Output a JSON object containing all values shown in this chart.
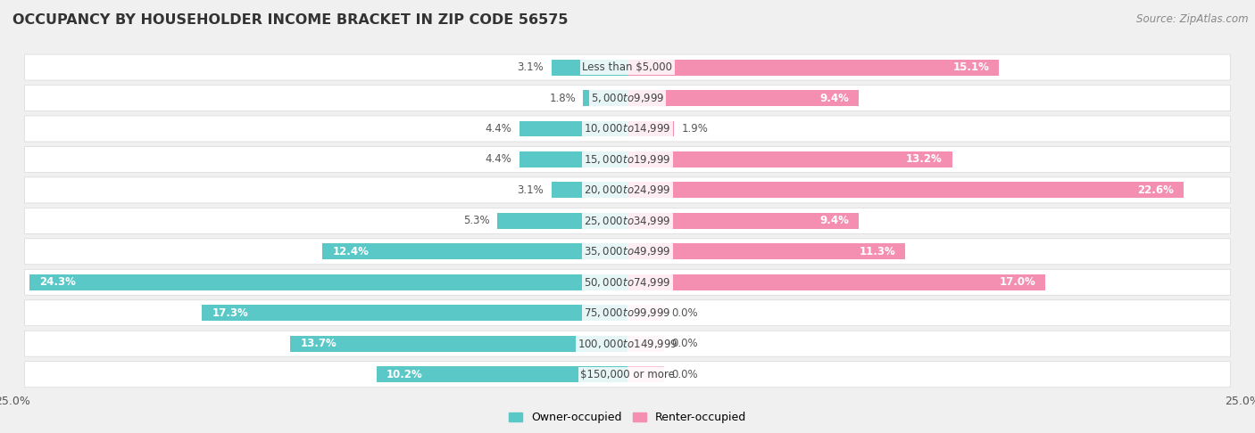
{
  "title": "OCCUPANCY BY HOUSEHOLDER INCOME BRACKET IN ZIP CODE 56575",
  "source": "Source: ZipAtlas.com",
  "categories": [
    "Less than $5,000",
    "$5,000 to $9,999",
    "$10,000 to $14,999",
    "$15,000 to $19,999",
    "$20,000 to $24,999",
    "$25,000 to $34,999",
    "$35,000 to $49,999",
    "$50,000 to $74,999",
    "$75,000 to $99,999",
    "$100,000 to $149,999",
    "$150,000 or more"
  ],
  "owner_values": [
    3.1,
    1.8,
    4.4,
    4.4,
    3.1,
    5.3,
    12.4,
    24.3,
    17.3,
    13.7,
    10.2
  ],
  "renter_values": [
    15.1,
    9.4,
    1.9,
    13.2,
    22.6,
    9.4,
    11.3,
    17.0,
    0.0,
    0.0,
    0.0
  ],
  "owner_color": "#5BC8C8",
  "renter_color": "#F48FB1",
  "renter_color_light": "#F9C9D8",
  "bar_height": 0.52,
  "xlim": 25.0,
  "background_color": "#f0f0f0",
  "row_bg": "#f7f7f7",
  "row_border": "#e0e0e0",
  "title_fontsize": 11.5,
  "source_fontsize": 8.5,
  "label_fontsize": 8.5,
  "tick_fontsize": 9,
  "legend_fontsize": 9,
  "inside_label_threshold": 8.0,
  "zero_stub": 1.5
}
